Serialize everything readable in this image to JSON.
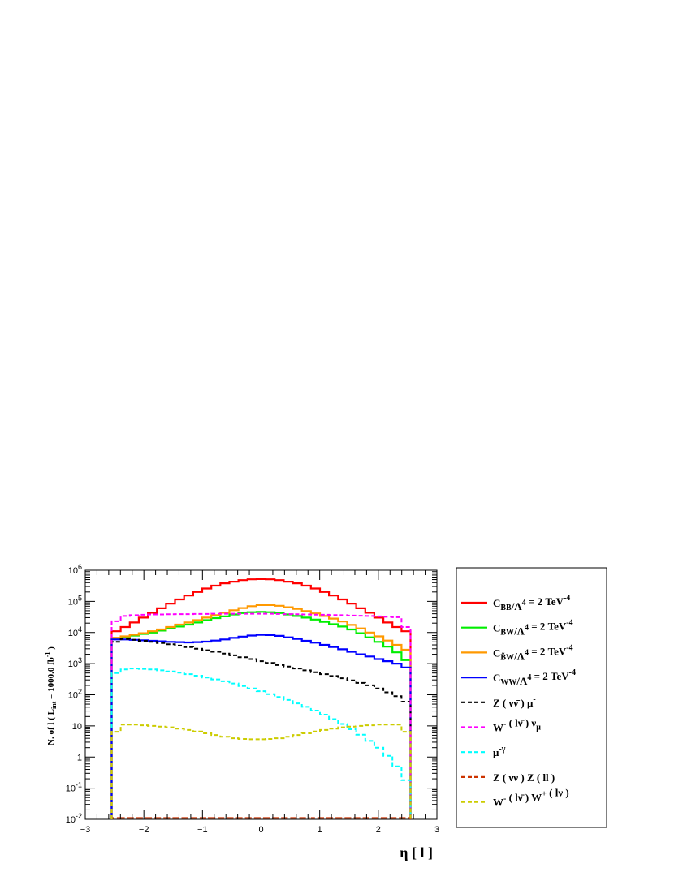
{
  "chart_data": {
    "type": "line",
    "xlabel": "η [ l ]",
    "ylabel": "N. of l ( L_int = 1000.0 fb^-1 )",
    "xlim": [
      -3,
      3
    ],
    "ylim": [
      0.01,
      1000000
    ],
    "yscale": "log",
    "grid": false,
    "legend_position": "right",
    "x_ticks": [
      "−3",
      "−2",
      "−1",
      "0",
      "1",
      "2",
      "3"
    ],
    "y_ticks": [
      "10^-2",
      "10^-1",
      "1",
      "10",
      "10^2",
      "10^3",
      "10^4",
      "10^5",
      "10^6"
    ],
    "bin_range": [
      -2.55,
      2.55
    ],
    "series": [
      {
        "name": "C_BB/Λ^4 = 2 TeV^-4",
        "color": "#ff0000",
        "style": "solid",
        "values": [
          11000,
          15000,
          21000,
          30000,
          43000,
          60000,
          85000,
          115000,
          155000,
          200000,
          260000,
          320000,
          380000,
          430000,
          480000,
          510000,
          520000,
          510000,
          480000,
          430000,
          380000,
          320000,
          260000,
          200000,
          155000,
          115000,
          85000,
          60000,
          43000,
          30000,
          21000,
          15000,
          11000
        ]
      },
      {
        "name": "C_BW/Λ^4 = 2 TeV^-4",
        "color": "#00ee00",
        "style": "solid",
        "values": [
          6500,
          7000,
          8000,
          9000,
          10000,
          11500,
          13500,
          15500,
          18000,
          21000,
          25000,
          29000,
          33000,
          38000,
          42000,
          45000,
          46000,
          45000,
          42000,
          38000,
          34000,
          30000,
          26000,
          22000,
          18500,
          15500,
          12500,
          9500,
          7000,
          5000,
          3500,
          2300,
          1300
        ]
      },
      {
        "name": "C_B̃W/Λ^4 = 2 TeV^-4",
        "color": "#ff9900",
        "style": "solid",
        "values": [
          6800,
          7500,
          8500,
          9500,
          11000,
          12500,
          15000,
          18000,
          21000,
          25000,
          30000,
          36000,
          43000,
          52000,
          61000,
          70000,
          76000,
          76000,
          72000,
          65000,
          57000,
          49000,
          41000,
          34000,
          28000,
          22500,
          17500,
          13500,
          10000,
          7500,
          5500,
          4000,
          2800
        ]
      },
      {
        "name": "C_WW/Λ^4 = 2 TeV^-4",
        "color": "#0000ff",
        "style": "solid",
        "values": [
          6000,
          6000,
          5800,
          5600,
          5400,
          5200,
          5000,
          4900,
          4800,
          4900,
          5100,
          5500,
          6000,
          6700,
          7400,
          8000,
          8400,
          8300,
          7800,
          7000,
          6200,
          5400,
          4700,
          4000,
          3400,
          2900,
          2400,
          2000,
          1700,
          1400,
          1200,
          1000,
          750
        ]
      },
      {
        "name": "Z ( νν̄ ) μ^-",
        "color": "#000000",
        "style": "dashed",
        "values": [
          5000,
          6200,
          5800,
          5400,
          5000,
          4600,
          4200,
          3800,
          3400,
          3000,
          2700,
          2400,
          2100,
          1850,
          1600,
          1400,
          1200,
          1050,
          900,
          800,
          700,
          610,
          530,
          460,
          400,
          340,
          290,
          240,
          200,
          160,
          120,
          90,
          60
        ]
      },
      {
        "name": "W^- ( lν̄ ) ν_μ",
        "color": "#ff00ff",
        "style": "dashed",
        "values": [
          23000,
          34000,
          36000,
          37000,
          38000,
          38000,
          38500,
          39000,
          39000,
          39500,
          39500,
          40000,
          40000,
          40000,
          40000,
          40000,
          40000,
          40000,
          39500,
          39000,
          38500,
          38000,
          37500,
          37000,
          36500,
          36000,
          35000,
          34500,
          34000,
          33000,
          32000,
          31000,
          15000
        ]
      },
      {
        "name": "μ^-γ",
        "color": "#00ffff",
        "style": "dashed",
        "values": [
          500,
          650,
          700,
          680,
          650,
          610,
          560,
          510,
          460,
          410,
          360,
          310,
          270,
          230,
          190,
          160,
          130,
          105,
          85,
          68,
          53,
          41,
          31,
          23,
          16.5,
          11.5,
          7.8,
          5.2,
          3.3,
          2,
          1.1,
          0.5,
          0.18
        ]
      },
      {
        "name": "Z ( νν̄ ) Z ( ll )",
        "color": "#cc3300",
        "style": "dashed",
        "values": [
          0.011,
          0.011,
          0.011,
          0.011,
          0.011,
          0.011,
          0.011,
          0.011,
          0.011,
          0.011,
          0.011,
          0.011,
          0.011,
          0.011,
          0.011,
          0.011,
          0.011,
          0.011,
          0.011,
          0.011,
          0.011,
          0.011,
          0.011,
          0.011,
          0.011,
          0.011,
          0.011,
          0.011,
          0.011,
          0.011,
          0.011,
          0.011,
          0.011
        ]
      },
      {
        "name": "W^- ( lν̄ ) W^+ ( lν )",
        "color": "#cccc00",
        "style": "dashed",
        "values": [
          6.5,
          11,
          11,
          10.5,
          10,
          9.5,
          9,
          8.2,
          7.4,
          6.6,
          5.8,
          5.1,
          4.5,
          4,
          3.8,
          3.7,
          3.7,
          3.8,
          4,
          4.5,
          5.1,
          5.8,
          6.6,
          7.4,
          8.2,
          9,
          9.5,
          10,
          10.5,
          11,
          11,
          11,
          6.5
        ]
      }
    ]
  }
}
